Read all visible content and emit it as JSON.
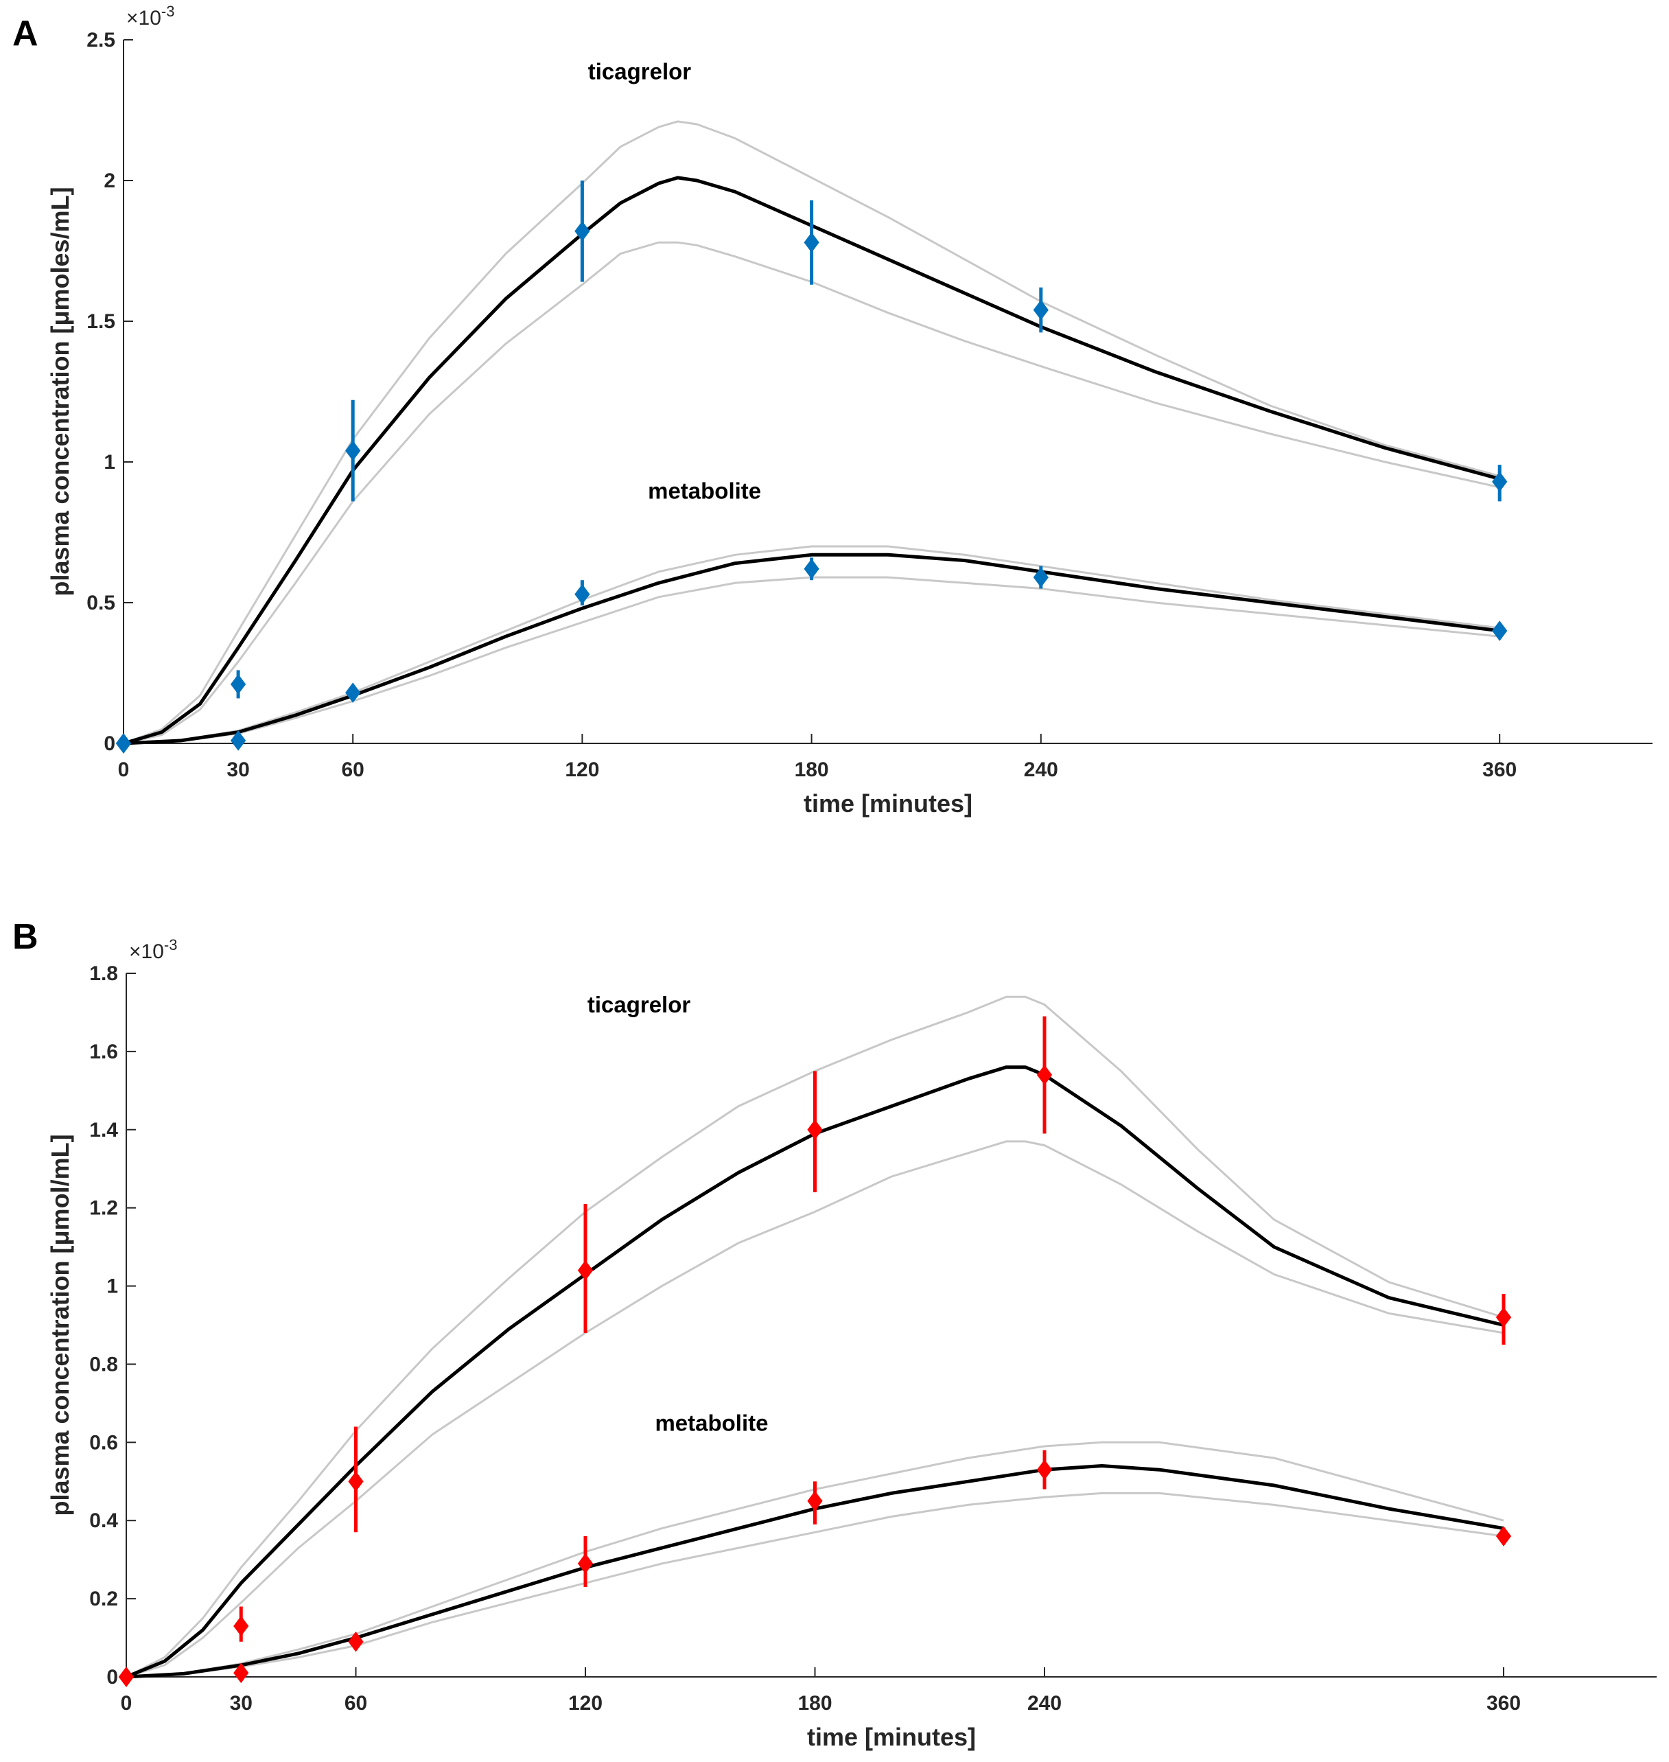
{
  "chart_data": [
    {
      "type": "line",
      "panel_label": "A",
      "xlabel": "time [minutes]",
      "ylabel": "plasma concentration [μmoles/mL]",
      "y_exponent_prefix": "×10",
      "y_exponent": "-3",
      "xlim": [
        0,
        400
      ],
      "ylim": [
        0,
        2.5
      ],
      "x_ticks": [
        0,
        30,
        60,
        120,
        180,
        240,
        360
      ],
      "x_tick_labels": [
        "0",
        "30",
        "60",
        "120",
        "180",
        "240",
        "360"
      ],
      "y_ticks": [
        0,
        0.5,
        1,
        1.5,
        2,
        2.5
      ],
      "y_tick_labels": [
        "0",
        "0.5",
        "1",
        "1.5",
        "2",
        "2.5"
      ],
      "marker_color": "#0072BD",
      "annotations": [
        {
          "text": "ticagrelor",
          "x": 135,
          "y": 2.36
        },
        {
          "text": "metabolite",
          "x": 152,
          "y": 0.87
        }
      ],
      "observed": [
        {
          "name": "ticagrelor",
          "x": [
            0,
            30,
            60,
            120,
            180,
            240,
            360
          ],
          "y": [
            0,
            0.21,
            1.04,
            1.82,
            1.78,
            1.54,
            0.93
          ],
          "err_low": [
            0,
            0.16,
            0.86,
            1.64,
            1.63,
            1.46,
            0.86
          ],
          "err_high": [
            0,
            0.26,
            1.22,
            2.0,
            1.93,
            1.62,
            0.99
          ]
        },
        {
          "name": "metabolite",
          "x": [
            0,
            30,
            60,
            120,
            180,
            240,
            360
          ],
          "y": [
            0,
            0.01,
            0.18,
            0.53,
            0.62,
            0.59,
            0.4
          ],
          "err_low": [
            0,
            0,
            0.16,
            0.49,
            0.58,
            0.55,
            0.39
          ],
          "err_high": [
            0,
            0.02,
            0.2,
            0.58,
            0.66,
            0.63,
            0.41
          ]
        }
      ],
      "model": [
        {
          "name": "ticagrelor-fit",
          "x": [
            0,
            10,
            20,
            30,
            45,
            60,
            80,
            100,
            120,
            130,
            140,
            145,
            150,
            160,
            180,
            200,
            220,
            240,
            270,
            300,
            330,
            360
          ],
          "y": [
            0,
            0.04,
            0.14,
            0.34,
            0.65,
            0.97,
            1.3,
            1.58,
            1.81,
            1.92,
            1.99,
            2.01,
            2.0,
            1.96,
            1.84,
            1.72,
            1.6,
            1.48,
            1.32,
            1.18,
            1.05,
            0.94
          ]
        },
        {
          "name": "ticagrelor-upper",
          "x": [
            0,
            10,
            20,
            30,
            45,
            60,
            80,
            100,
            120,
            130,
            140,
            145,
            150,
            160,
            180,
            200,
            220,
            240,
            270,
            300,
            330,
            360
          ],
          "y": [
            0,
            0.05,
            0.17,
            0.4,
            0.74,
            1.08,
            1.44,
            1.74,
            1.99,
            2.12,
            2.19,
            2.21,
            2.2,
            2.15,
            2.01,
            1.87,
            1.72,
            1.57,
            1.38,
            1.2,
            1.06,
            0.95
          ]
        },
        {
          "name": "ticagrelor-lower",
          "x": [
            0,
            10,
            20,
            30,
            45,
            60,
            80,
            100,
            120,
            130,
            140,
            145,
            150,
            160,
            180,
            200,
            220,
            240,
            270,
            300,
            330,
            360
          ],
          "y": [
            0,
            0.03,
            0.12,
            0.29,
            0.57,
            0.86,
            1.17,
            1.42,
            1.63,
            1.74,
            1.78,
            1.78,
            1.77,
            1.73,
            1.64,
            1.53,
            1.43,
            1.34,
            1.21,
            1.1,
            1.0,
            0.91
          ]
        },
        {
          "name": "metabolite-fit",
          "x": [
            0,
            15,
            30,
            45,
            60,
            80,
            100,
            120,
            140,
            160,
            180,
            200,
            220,
            240,
            270,
            300,
            330,
            360
          ],
          "y": [
            0,
            0.01,
            0.04,
            0.1,
            0.17,
            0.27,
            0.38,
            0.48,
            0.57,
            0.64,
            0.67,
            0.67,
            0.65,
            0.61,
            0.55,
            0.5,
            0.45,
            0.4
          ],
          "y_upper": [
            0,
            0.012,
            0.045,
            0.11,
            0.18,
            0.29,
            0.4,
            0.51,
            0.61,
            0.67,
            0.7,
            0.7,
            0.67,
            0.63,
            0.57,
            0.51,
            0.46,
            0.41
          ],
          "y_lower": [
            0,
            0.008,
            0.035,
            0.09,
            0.15,
            0.24,
            0.34,
            0.43,
            0.52,
            0.57,
            0.59,
            0.59,
            0.57,
            0.55,
            0.5,
            0.46,
            0.42,
            0.38
          ]
        }
      ]
    },
    {
      "type": "line",
      "panel_label": "B",
      "xlabel": "time [minutes]",
      "ylabel": "plasma concentration [μmol/mL]",
      "y_exponent_prefix": "×10",
      "y_exponent": "-3",
      "xlim": [
        0,
        400
      ],
      "ylim": [
        0,
        1.8
      ],
      "x_ticks": [
        0,
        30,
        60,
        120,
        180,
        240,
        360
      ],
      "x_tick_labels": [
        "0",
        "30",
        "60",
        "120",
        "180",
        "240",
        "360"
      ],
      "y_ticks": [
        0,
        0.2,
        0.4,
        0.6,
        0.8,
        1,
        1.2,
        1.4,
        1.6,
        1.8
      ],
      "y_tick_labels": [
        "0",
        "0.2",
        "0.4",
        "0.6",
        "0.8",
        "1",
        "1.2",
        "1.4",
        "1.6",
        "1.8"
      ],
      "marker_color": "#FF0000",
      "annotations": [
        {
          "text": "ticagrelor",
          "x": 134,
          "y": 1.7
        },
        {
          "text": "metabolite",
          "x": 153,
          "y": 0.63
        }
      ],
      "observed": [
        {
          "name": "ticagrelor",
          "x": [
            0,
            30,
            60,
            120,
            180,
            240,
            360
          ],
          "y": [
            0,
            0.13,
            0.5,
            1.04,
            1.4,
            1.54,
            0.92
          ],
          "err_low": [
            0,
            0.09,
            0.37,
            0.88,
            1.24,
            1.39,
            0.85
          ],
          "err_high": [
            0,
            0.18,
            0.64,
            1.21,
            1.55,
            1.69,
            0.98
          ]
        },
        {
          "name": "metabolite",
          "x": [
            0,
            30,
            60,
            120,
            180,
            240,
            360
          ],
          "y": [
            0,
            0.01,
            0.09,
            0.29,
            0.45,
            0.53,
            0.36
          ],
          "err_low": [
            0,
            0,
            0.07,
            0.23,
            0.39,
            0.48,
            0.35
          ],
          "err_high": [
            0,
            0.02,
            0.11,
            0.36,
            0.5,
            0.58,
            0.37
          ]
        }
      ],
      "model": [
        {
          "name": "ticagrelor-fit",
          "x": [
            0,
            10,
            20,
            30,
            45,
            60,
            80,
            100,
            120,
            140,
            160,
            180,
            200,
            220,
            230,
            235,
            240,
            260,
            280,
            300,
            330,
            360
          ],
          "y": [
            0,
            0.04,
            0.12,
            0.24,
            0.39,
            0.54,
            0.73,
            0.89,
            1.03,
            1.17,
            1.29,
            1.39,
            1.46,
            1.53,
            1.56,
            1.56,
            1.54,
            1.41,
            1.25,
            1.1,
            0.97,
            0.9
          ],
          "y_upper": [
            0,
            0.05,
            0.15,
            0.28,
            0.45,
            0.63,
            0.84,
            1.02,
            1.19,
            1.33,
            1.46,
            1.55,
            1.63,
            1.7,
            1.74,
            1.74,
            1.72,
            1.55,
            1.35,
            1.17,
            1.01,
            0.92
          ],
          "y_lower": [
            0,
            0.03,
            0.1,
            0.19,
            0.33,
            0.45,
            0.62,
            0.75,
            0.88,
            1.0,
            1.11,
            1.19,
            1.28,
            1.34,
            1.37,
            1.37,
            1.36,
            1.26,
            1.14,
            1.03,
            0.93,
            0.88
          ]
        },
        {
          "name": "metabolite-fit",
          "x": [
            0,
            15,
            30,
            45,
            60,
            80,
            100,
            120,
            140,
            160,
            180,
            200,
            220,
            240,
            255,
            270,
            300,
            330,
            360
          ],
          "y": [
            0,
            0.008,
            0.03,
            0.06,
            0.1,
            0.16,
            0.22,
            0.28,
            0.33,
            0.38,
            0.43,
            0.47,
            0.5,
            0.53,
            0.54,
            0.53,
            0.49,
            0.43,
            0.38
          ],
          "y_upper": [
            0,
            0.009,
            0.034,
            0.07,
            0.11,
            0.18,
            0.25,
            0.32,
            0.38,
            0.43,
            0.48,
            0.52,
            0.56,
            0.59,
            0.6,
            0.6,
            0.56,
            0.48,
            0.4
          ],
          "y_lower": [
            0,
            0.007,
            0.026,
            0.05,
            0.08,
            0.14,
            0.19,
            0.24,
            0.29,
            0.33,
            0.37,
            0.41,
            0.44,
            0.46,
            0.47,
            0.47,
            0.44,
            0.4,
            0.36
          ]
        }
      ]
    }
  ]
}
